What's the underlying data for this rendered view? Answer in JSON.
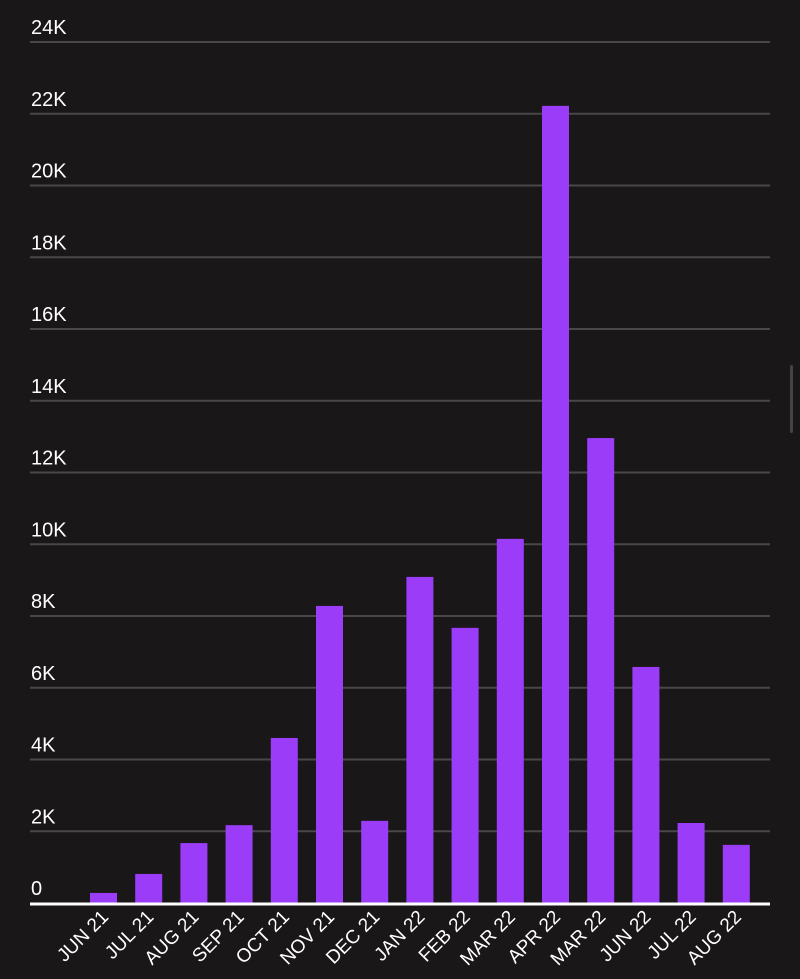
{
  "chart_data": {
    "type": "bar",
    "title": "",
    "xlabel": "",
    "ylabel": "",
    "ylim": [
      0,
      24000
    ],
    "yticks": [
      0,
      2000,
      4000,
      6000,
      8000,
      10000,
      12000,
      14000,
      16000,
      18000,
      20000,
      22000,
      24000
    ],
    "ytick_labels": [
      "0",
      "2K",
      "4K",
      "6K",
      "8K",
      "10K",
      "12K",
      "14K",
      "16K",
      "18K",
      "20K",
      "22K",
      "24K"
    ],
    "grid": true,
    "categories": [
      "JUN 21",
      "JUL 21",
      "AUG 21",
      "SEP 21",
      "OCT 21",
      "NOV 21",
      "DEC 21",
      "JAN 22",
      "FEB 22",
      "MAR 22",
      "APR 22",
      "MAR 22",
      "JUN 22",
      "JUL 22",
      "AUG 22"
    ],
    "values": [
      280,
      810,
      1670,
      2170,
      4600,
      8280,
      2290,
      9090,
      7670,
      10150,
      22220,
      12960,
      6580,
      2230,
      1620
    ],
    "colors": {
      "bar": "#9b3cf8",
      "background": "#1a1718",
      "grid": "#4a4748",
      "axis": "#ffffff"
    }
  }
}
